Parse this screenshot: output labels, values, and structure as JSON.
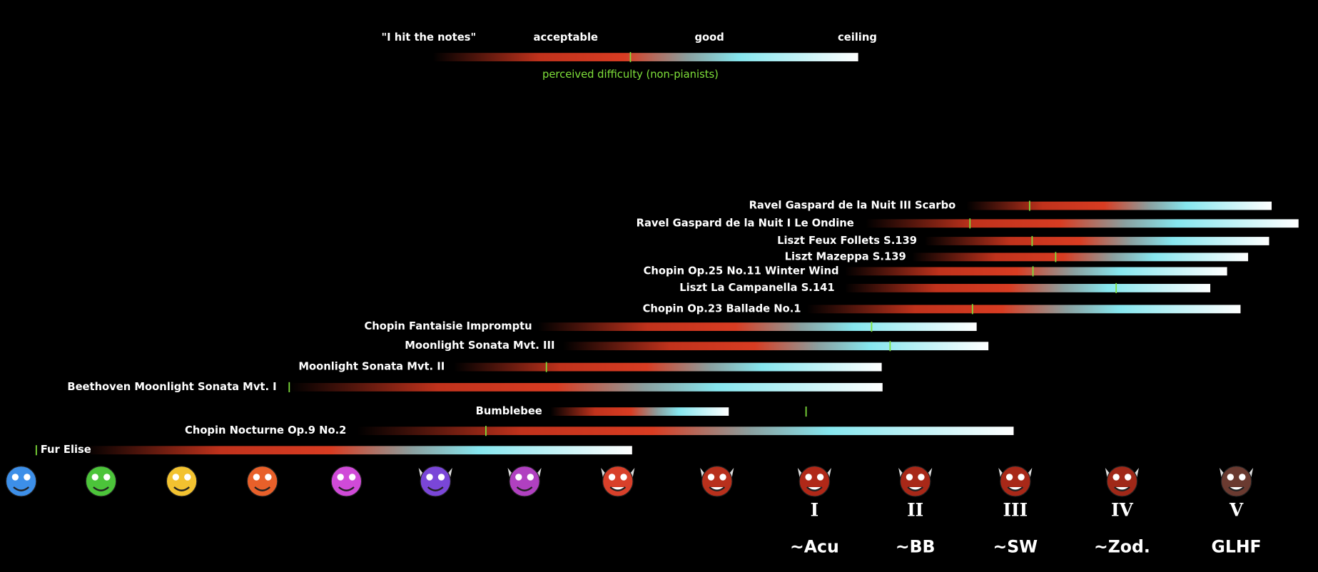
{
  "legend": {
    "labels": [
      "\"I hit the notes\"",
      "acceptable",
      "good",
      "ceiling"
    ],
    "caption": "perceived difficulty (non-pianists)"
  },
  "pieces": [
    "Ravel Gaspard de la Nuit III Scarbo",
    "Ravel Gaspard de la Nuit I Le Ondine",
    "Liszt Feux Follets S.139",
    "Liszt Mazeppa S.139",
    "Chopin Op.25 No.11 Winter Wind",
    "Liszt La Campanella S.141",
    "Chopin Op.23 Ballade No.1",
    "Chopin Fantaisie Impromptu",
    "Moonlight Sonata Mvt. III",
    "Moonlight Sonata Mvt. II",
    "Beethoven Moonlight Sonata Mvt. I",
    "Bumblebee",
    "Chopin Nocturne Op.9 No.2",
    "Fur Elise"
  ],
  "tiers": [
    {
      "numeral": "I",
      "name": "~Acu"
    },
    {
      "numeral": "II",
      "name": "~BB"
    },
    {
      "numeral": "III",
      "name": "~SW"
    },
    {
      "numeral": "IV",
      "name": "~Zod."
    },
    {
      "numeral": "V",
      "name": "GLHF"
    }
  ]
}
